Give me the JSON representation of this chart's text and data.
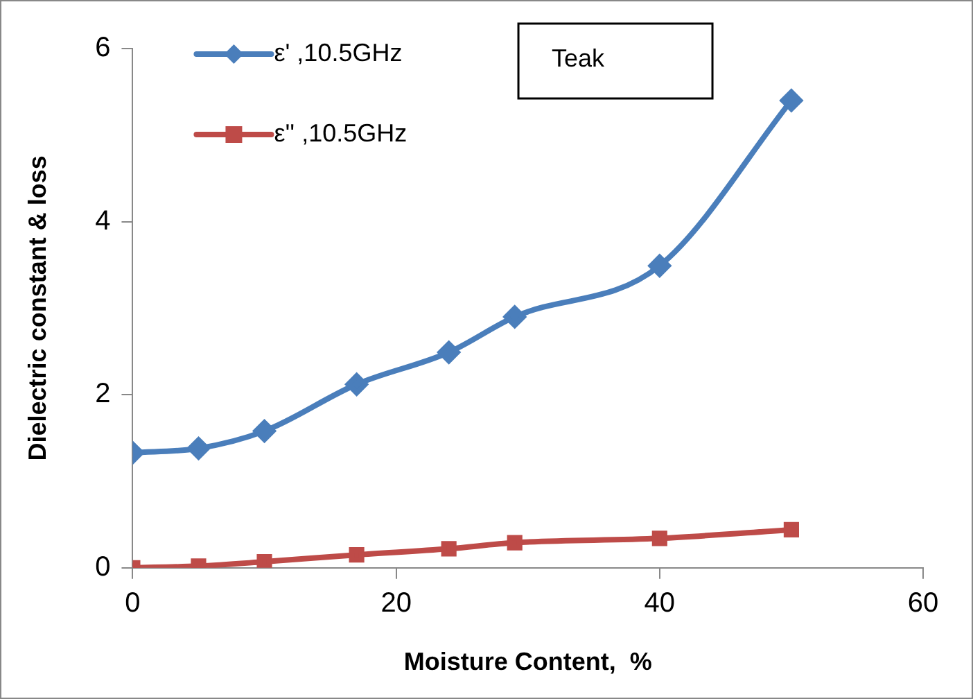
{
  "chart_data": {
    "type": "line",
    "xlabel": "Moisture Content,  %",
    "ylabel": "Dielectric constant & loss",
    "x": [
      0,
      5,
      10,
      17,
      24,
      29,
      40,
      50
    ],
    "series": [
      {
        "name": "ε' ,10.5GHz",
        "color": "#4a7ebb",
        "marker": "diamond",
        "values": [
          1.33,
          1.38,
          1.58,
          2.12,
          2.49,
          2.9,
          3.49,
          5.4
        ]
      },
      {
        "name": "ε'' ,10.5GHz",
        "color": "#be4b48",
        "marker": "square",
        "values": [
          0.0,
          0.02,
          0.07,
          0.15,
          0.22,
          0.29,
          0.34,
          0.44
        ]
      }
    ],
    "xlim": [
      0,
      60
    ],
    "xticks": [
      0,
      20,
      40,
      60
    ],
    "ylim": [
      0,
      6
    ],
    "yticks": [
      0,
      2,
      4,
      6
    ],
    "grid": false,
    "legend": "top left",
    "annotations": [
      "Teak"
    ]
  }
}
